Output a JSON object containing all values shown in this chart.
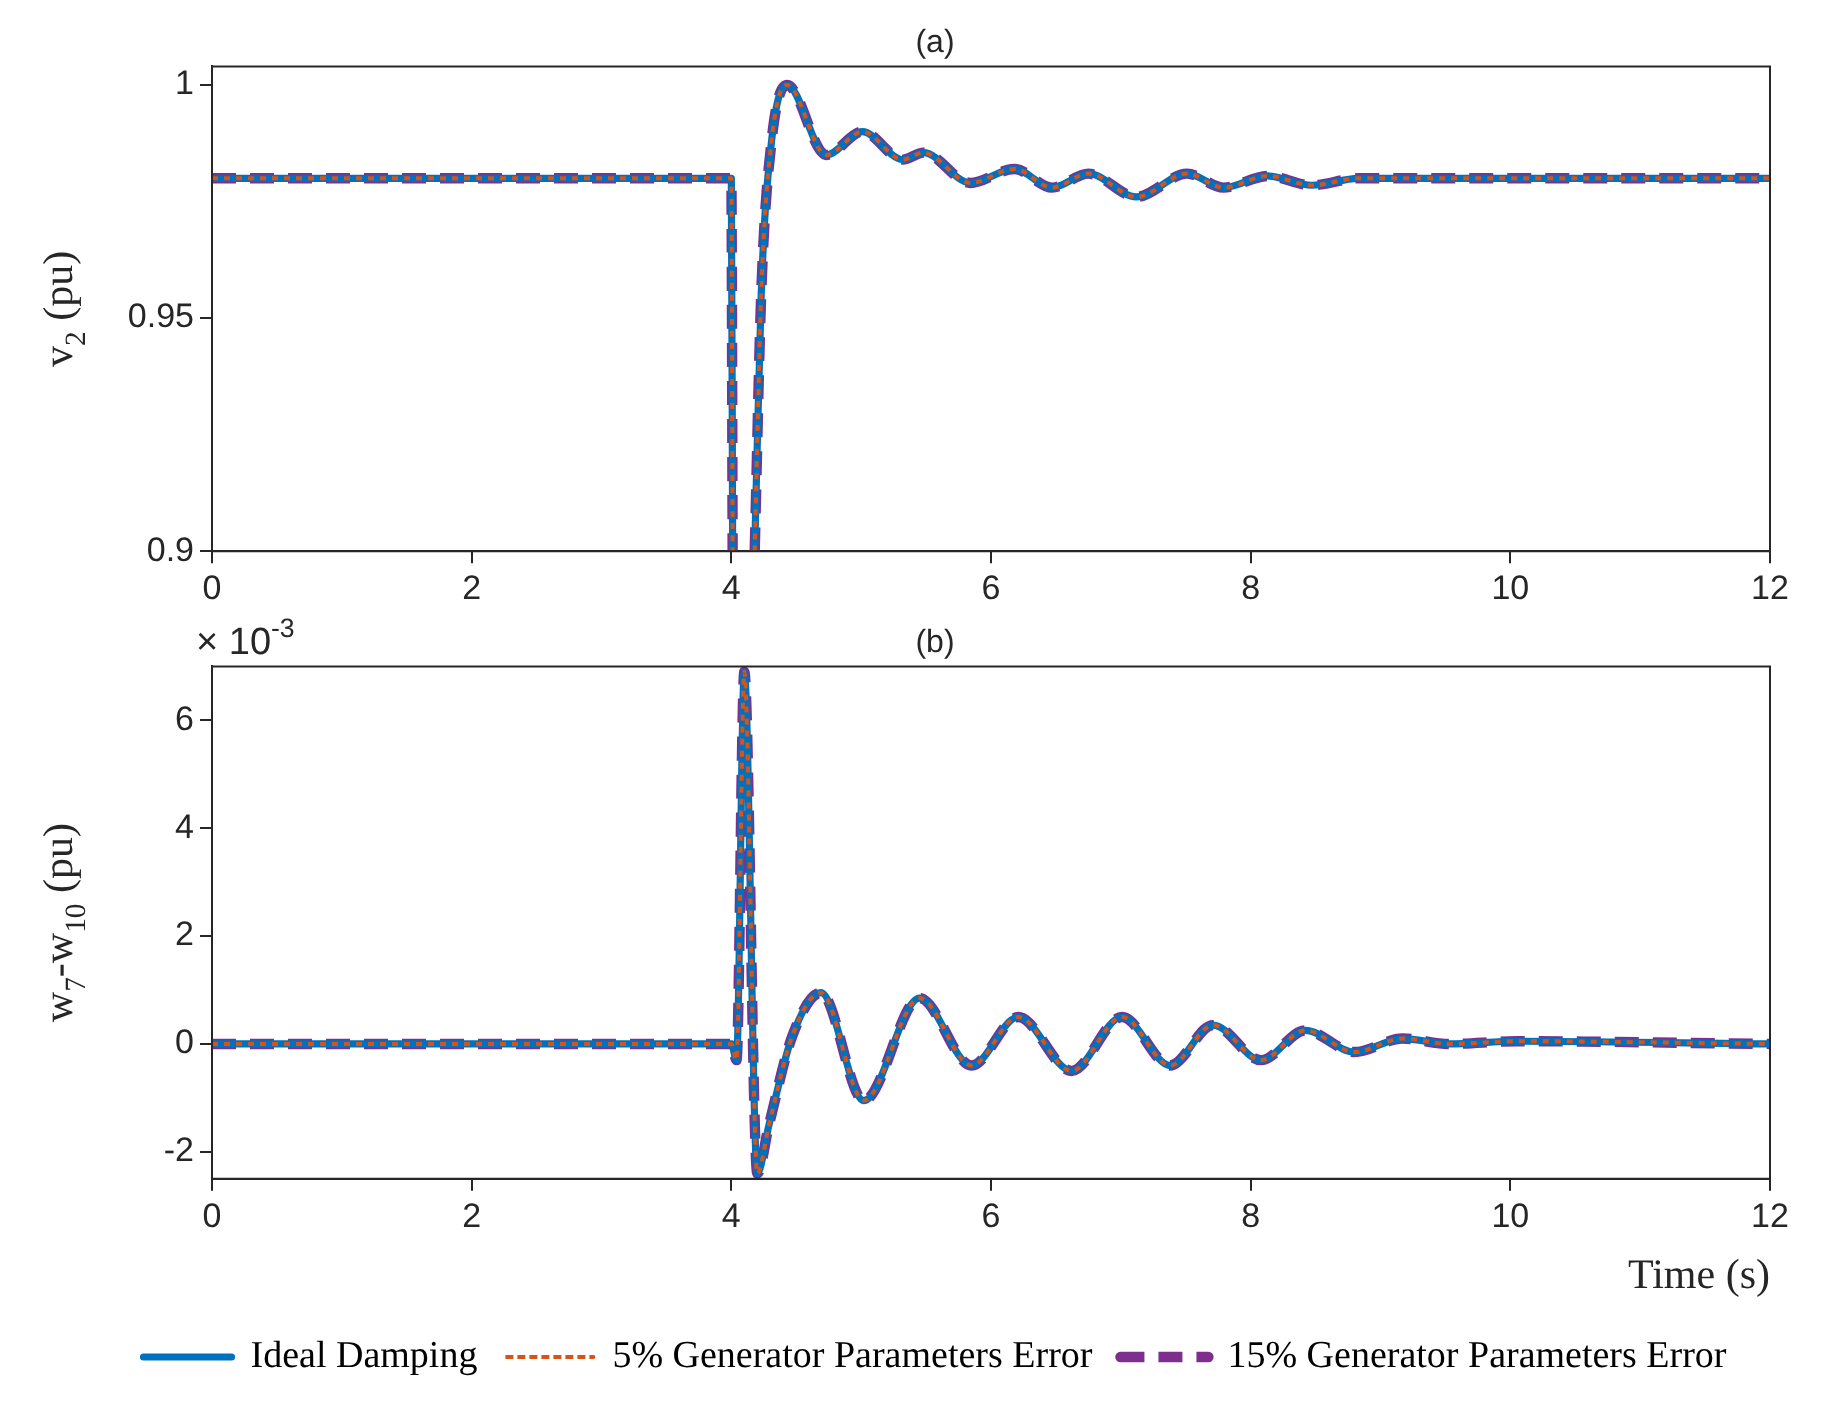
{
  "chart_data": [
    {
      "type": "line",
      "title": "(a)",
      "ylabel": "v$_{2}$ (pu)",
      "x": [
        0,
        4.0,
        4.01,
        4.1,
        4.18,
        4.23,
        4.31,
        4.43,
        4.73,
        5.01,
        5.32,
        5.48,
        5.84,
        6.18,
        6.47,
        6.75,
        7.12,
        7.51,
        7.79,
        8.13,
        8.47,
        8.83,
        9.5,
        12
      ],
      "series": [
        {
          "color": "#7e2f8e",
          "line_style": "dashed",
          "values": [
            0.98,
            0.98,
            0.9,
            null,
            0.9,
            0.955,
            0.988,
            1.0,
            0.985,
            0.99,
            0.984,
            0.9855,
            0.979,
            0.982,
            0.978,
            0.981,
            0.976,
            0.981,
            0.978,
            0.9805,
            0.9785,
            0.98,
            0.98,
            0.98
          ]
        },
        {
          "color": "#0072bd",
          "line_style": "solid",
          "values": [
            0.98,
            0.98,
            0.9,
            null,
            0.9,
            0.955,
            0.988,
            1.0,
            0.985,
            0.99,
            0.984,
            0.9855,
            0.979,
            0.982,
            0.978,
            0.981,
            0.976,
            0.981,
            0.978,
            0.9805,
            0.9785,
            0.98,
            0.98,
            0.98
          ]
        },
        {
          "color": "#d95319",
          "line_style": "dotted",
          "values": [
            0.98,
            0.98,
            0.9,
            null,
            0.9,
            0.955,
            0.988,
            1.0,
            0.985,
            0.99,
            0.984,
            0.9855,
            0.979,
            0.982,
            0.978,
            0.981,
            0.976,
            0.981,
            0.978,
            0.9805,
            0.9785,
            0.98,
            0.98,
            0.98
          ]
        }
      ],
      "xlim": [
        0,
        12
      ],
      "xticks": [
        0,
        2,
        4,
        6,
        8,
        10,
        12
      ],
      "ylim": [
        0.9,
        1.004
      ],
      "yticks": [
        0.9,
        0.95,
        1
      ],
      "grid": false,
      "legend": false,
      "marker": "none"
    },
    {
      "type": "line",
      "title": "(b)",
      "xlabel": "Time (s)",
      "ylabel": "w$_{7}$-w$_{10}$ (pu)",
      "annotations": [
        "× 10$^{-3}$"
      ],
      "x": [
        0,
        4.0,
        4.04,
        4.1,
        4.2,
        4.29,
        4.47,
        4.69,
        5.02,
        5.45,
        5.85,
        6.21,
        6.62,
        7.01,
        7.38,
        7.71,
        8.08,
        8.42,
        8.8,
        9.17,
        9.53,
        10.05,
        12
      ],
      "series": [
        {
          "name": "15% Generator Parameters Error",
          "color": "#7e2f8e",
          "line_style": "dashed",
          "values": [
            0,
            0,
            -0.3,
            6.9,
            -2.4,
            -1.5,
            0.15,
            0.95,
            -1.05,
            0.85,
            -0.4,
            0.5,
            -0.5,
            0.5,
            -0.4,
            0.35,
            -0.3,
            0.25,
            -0.15,
            0.1,
            0,
            0.05,
            0
          ]
        },
        {
          "name": "Ideal Damping",
          "color": "#0072bd",
          "line_style": "solid",
          "values": [
            0,
            0,
            -0.3,
            6.9,
            -2.4,
            -1.5,
            0.15,
            0.95,
            -1.05,
            0.85,
            -0.4,
            0.5,
            -0.5,
            0.5,
            -0.4,
            0.35,
            -0.3,
            0.25,
            -0.15,
            0.1,
            0,
            0.05,
            0
          ]
        },
        {
          "name": "5% Generator Parameters Error",
          "color": "#d95319",
          "line_style": "dotted",
          "values": [
            0,
            0,
            -0.3,
            6.9,
            -2.4,
            -1.5,
            0.15,
            0.95,
            -1.05,
            0.85,
            -0.4,
            0.5,
            -0.5,
            0.5,
            -0.4,
            0.35,
            -0.3,
            0.25,
            -0.15,
            0.1,
            0,
            0.05,
            0
          ]
        }
      ],
      "xlim": [
        0,
        12
      ],
      "xticks": [
        0,
        2,
        4,
        6,
        8,
        10,
        12
      ],
      "ylim": [
        -2.5,
        7
      ],
      "yticks": [
        -2,
        0,
        2,
        4,
        6
      ],
      "grid": false,
      "legend": "bottom",
      "marker": "none"
    }
  ]
}
